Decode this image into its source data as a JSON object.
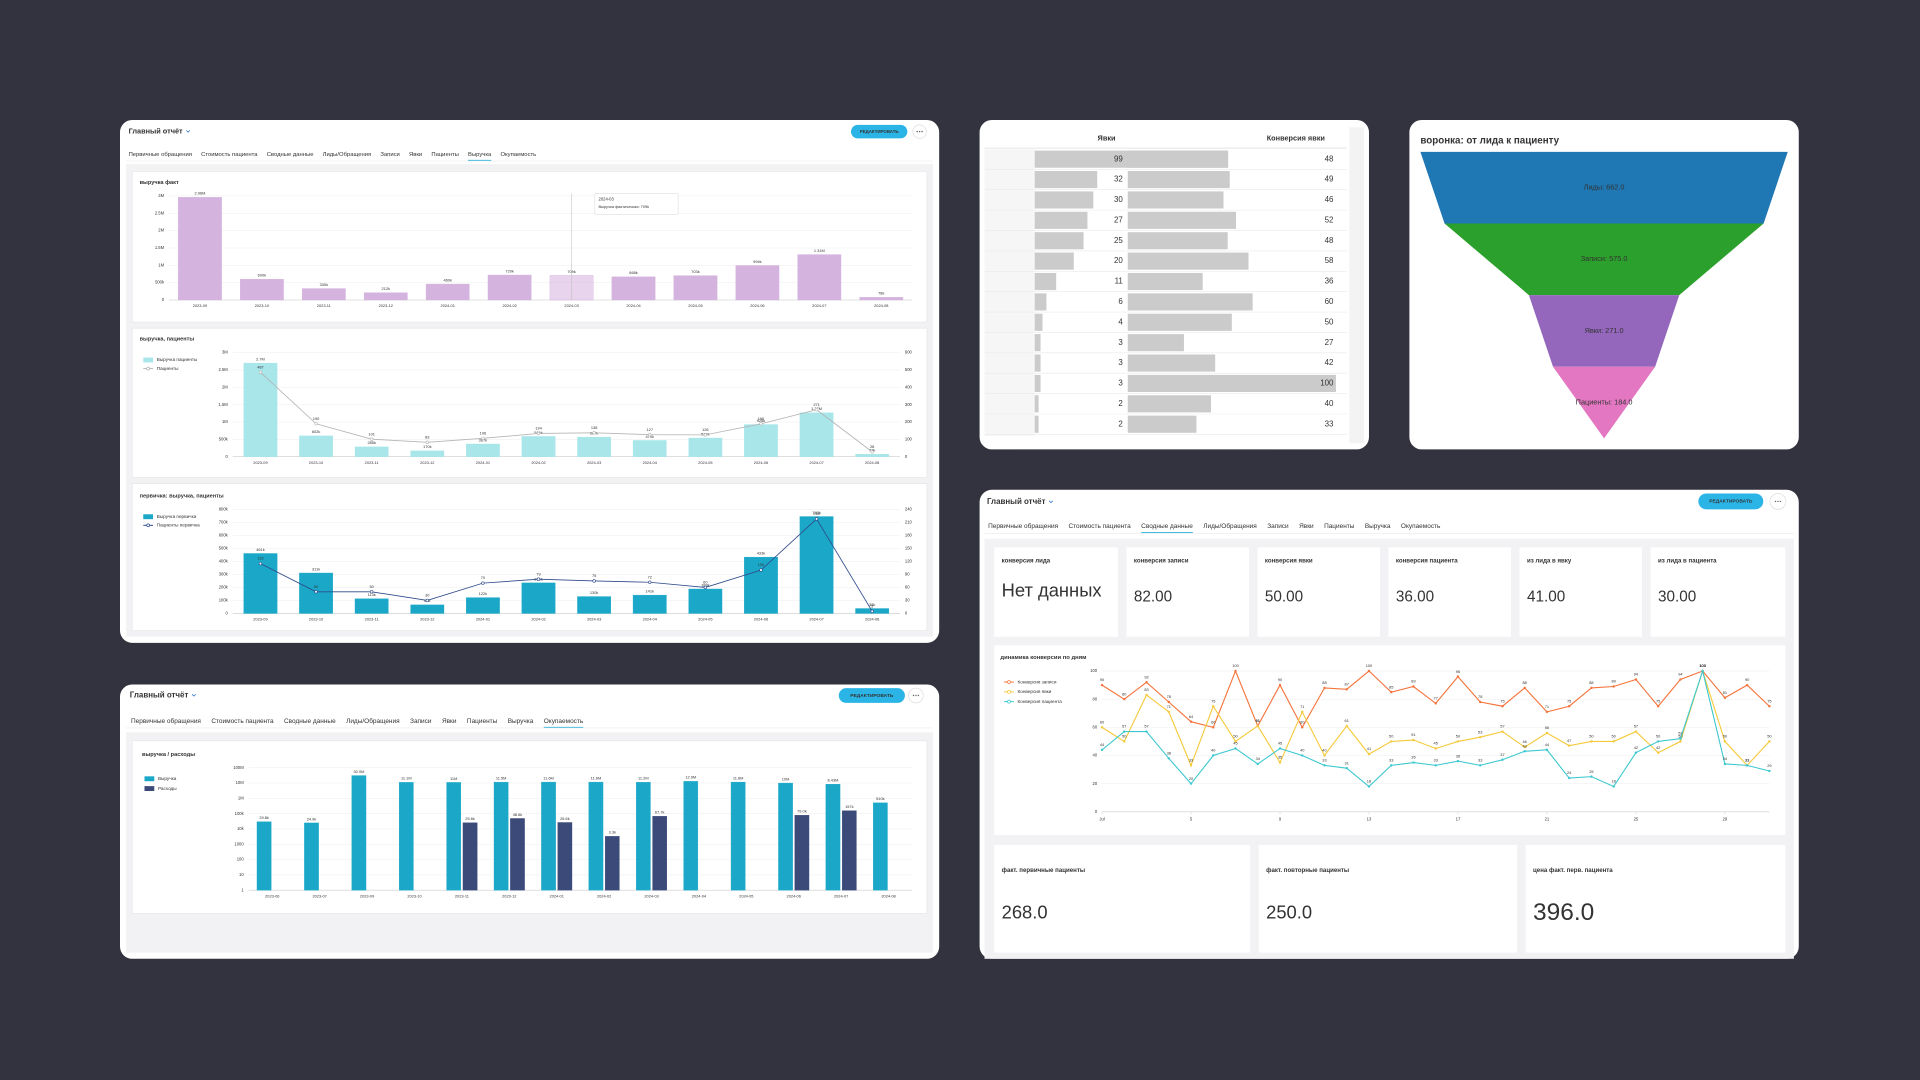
{
  "report": {
    "title": "Главный отчёт",
    "edit_button": "РЕДАКТИРОВАТЬ",
    "tabs": [
      "Первичные обращения",
      "Стоимость пациента",
      "Сводные данные",
      "Лиды/Обращения",
      "Записи",
      "Явки",
      "Пациенты",
      "Выручка",
      "Окупаемость"
    ]
  },
  "views": [
    {
      "active_tab": 7
    },
    {
      "active_tab": 8
    },
    {
      "active_tab": 2
    }
  ],
  "chart_data": [
    {
      "type": "bar",
      "title": "выручка факт",
      "categories": [
        "2023-09",
        "2023-10",
        "2023-11",
        "2023-12",
        "2024-01",
        "2024-02",
        "2024-03",
        "2024-04",
        "2024-05",
        "2024-06",
        "2024-07",
        "2024-08"
      ],
      "values": [
        2960000,
        600000,
        330000,
        212000,
        460000,
        720000,
        709000,
        668000,
        703000,
        994000,
        1310000,
        78000
      ],
      "value_labels": [
        "2.96M",
        "600k",
        "330k",
        "212k",
        "460k",
        "720k",
        "709k",
        "668k",
        "703k",
        "994k",
        "1.31M",
        "78k"
      ],
      "color": "#d5b3df",
      "ylim": [
        0,
        3000000
      ],
      "yticks": [
        0,
        {
          "value": 500000,
          "label": "500k"
        },
        {
          "value": 1000000,
          "label": "1M"
        },
        {
          "value": 1500000,
          "label": "1.5M"
        },
        {
          "value": 2000000,
          "label": "2M"
        },
        {
          "value": 2500000,
          "label": "2.5M"
        },
        {
          "value": 3000000,
          "label": "3M"
        }
      ],
      "grid": true,
      "tooltip": {
        "title": "2024-03",
        "text": "Выручка фактическая: 709k"
      }
    },
    {
      "type": "bar_line",
      "title": "выручка, пациенты",
      "legend": "left",
      "categories": [
        "2023-09",
        "2023-10",
        "2023-11",
        "2023-12",
        "2024-01",
        "2024-02",
        "2024-03",
        "2024-04",
        "2024-05",
        "2024-06",
        "2024-07",
        "2024-08"
      ],
      "series": [
        {
          "name": "Выручка пациенты",
          "type": "bar",
          "color": "#a8e6ea",
          "values": [
            2700000,
            602000,
            285000,
            170000,
            367000,
            586000,
            567000,
            470000,
            539000,
            928000,
            1270000,
            73000
          ],
          "value_labels": [
            "2.7M",
            "602k",
            "285k",
            "170k",
            "367k",
            "586k",
            "567k",
            "470k",
            "539k",
            "928k",
            "1.27M",
            "73k"
          ]
        },
        {
          "name": "Пациенты",
          "type": "line",
          "axis": "y2",
          "color": "#b5b5b5",
          "values": [
            487,
            190,
            101,
            83,
            106,
            134,
            138,
            127,
            126,
            190,
            271,
            28
          ]
        }
      ],
      "ylim": [
        0,
        3000000
      ],
      "yticks": [
        0,
        {
          "value": 500000,
          "label": "500k"
        },
        {
          "value": 1000000,
          "label": "1M"
        },
        {
          "value": 1500000,
          "label": "1.5M"
        },
        {
          "value": 2000000,
          "label": "2M"
        },
        {
          "value": 2500000,
          "label": "2.5M"
        },
        {
          "value": 3000000,
          "label": "3M"
        }
      ],
      "y2lim": [
        0,
        600
      ],
      "y2ticks": [
        0,
        100,
        200,
        300,
        400,
        500,
        600
      ],
      "grid": true
    },
    {
      "type": "bar_line",
      "title": "первичка: выручка, пациенты",
      "legend": "left",
      "categories": [
        "2023-09",
        "2023-10",
        "2023-11",
        "2023-12",
        "2024-01",
        "2024-02",
        "2024-03",
        "2024-04",
        "2024-05",
        "2024-06",
        "2024-07",
        "2024-08"
      ],
      "series": [
        {
          "name": "Выручка первичка",
          "type": "bar",
          "color": "#1ba8c8",
          "values": [
            461000,
            311000,
            113000,
            66000,
            122000,
            235000,
            130000,
            141000,
            188000,
            433000,
            745000,
            38000
          ],
          "value_labels": [
            "461k",
            "311k",
            "113k",
            "66k",
            "122k",
            "235k",
            "130k",
            "141k",
            "188k",
            "433k",
            "745k",
            "38k"
          ]
        },
        {
          "name": "Пациенты первичка",
          "type": "line",
          "axis": "y2",
          "color": "#2f4b8c",
          "values": [
            115,
            50,
            50,
            30,
            70,
            79,
            75,
            72,
            60,
            100,
            218,
            5
          ]
        }
      ],
      "ylim": [
        0,
        800000
      ],
      "yticks": [
        0,
        {
          "value": 100000,
          "label": "100k"
        },
        {
          "value": 200000,
          "label": "200k"
        },
        {
          "value": 300000,
          "label": "300k"
        },
        {
          "value": 400000,
          "label": "400k"
        },
        {
          "value": 500000,
          "label": "500k"
        },
        {
          "value": 600000,
          "label": "600k"
        },
        {
          "value": 700000,
          "label": "700k"
        },
        {
          "value": 800000,
          "label": "800k"
        }
      ],
      "y2lim": [
        0,
        240
      ],
      "y2ticks": [
        0,
        30,
        60,
        90,
        120,
        150,
        180,
        210,
        240
      ],
      "grid": true
    },
    {
      "type": "bar",
      "title": "выручка / расходы",
      "legend": "left",
      "log_scale": true,
      "categories": [
        "2023-06",
        "2023-07",
        "2023-09",
        "2023-10",
        "2023-11",
        "2023-12",
        "2024-01",
        "2024-02",
        "2024-03",
        "2024-04",
        "2024-05",
        "2024-06",
        "2024-07",
        "2024-08"
      ],
      "series": [
        {
          "name": "Выручка",
          "color": "#1ba8c8",
          "values": [
            29800,
            24900,
            30900000,
            11100000,
            11000000,
            11500000,
            11600000,
            11600000,
            11200000,
            12900000,
            11600000,
            10000000,
            8430000,
            510000
          ],
          "value_labels": [
            "29.8k",
            "24.9k",
            "30.9M",
            "11.1M",
            "11M",
            "11.5M",
            "11.6M",
            "11.6M",
            "11.2M",
            "12.9M",
            "11.6M",
            "10M",
            "8.43M",
            "510k"
          ]
        },
        {
          "name": "Расходы",
          "color": "#3c4a7a",
          "values": [
            null,
            null,
            null,
            null,
            25600,
            48600,
            26600,
            3300,
            67700,
            null,
            null,
            79000,
            157000,
            null
          ],
          "value_labels": [
            null,
            null,
            null,
            null,
            "25.6k",
            "48.6k",
            "26.6k",
            "3.3k",
            "67.7k",
            null,
            null,
            "79.0k",
            "157k",
            null
          ]
        }
      ],
      "ylim": [
        1,
        100000000
      ],
      "yticks": [
        1,
        10,
        100,
        1000,
        {
          "value": 10000,
          "label": "10k"
        },
        {
          "value": 100000,
          "label": "100k"
        },
        {
          "value": 1000000,
          "label": "1M"
        },
        {
          "value": 10000000,
          "label": "10M"
        },
        {
          "value": 100000000,
          "label": "100M"
        }
      ],
      "grid": true
    },
    {
      "type": "line",
      "title": "динамика конверсии по дням",
      "legend": "left",
      "x": [
        1,
        2,
        3,
        4,
        5,
        6,
        7,
        8,
        9,
        10,
        11,
        12,
        13,
        14,
        15,
        16,
        17,
        18,
        19,
        20,
        21,
        22,
        23,
        24,
        25,
        26,
        27,
        28,
        29,
        30,
        31
      ],
      "xlim": [
        1,
        31
      ],
      "xticks": [
        {
          "value": 1,
          "label": "Jul"
        },
        5,
        9,
        13,
        17,
        21,
        25,
        29
      ],
      "ylim": [
        0,
        100
      ],
      "yticks": [
        0,
        20,
        40,
        60,
        80,
        100
      ],
      "grid": true,
      "series": [
        {
          "name": "Конверсия записи",
          "color": "#f5733a",
          "values": [
            90,
            80,
            92,
            78,
            64,
            60,
            100,
            61,
            90,
            60,
            88,
            87,
            100,
            85,
            89,
            77,
            96,
            78,
            75,
            88,
            71,
            75,
            88,
            89,
            94,
            75,
            94,
            100,
            81,
            90,
            75
          ]
        },
        {
          "name": "Конверсия явки",
          "color": "#f5c938",
          "values": [
            60,
            50,
            83,
            71,
            33,
            75,
            50,
            61,
            35,
            71,
            40,
            61,
            41,
            50,
            51,
            45,
            50,
            53,
            57,
            46,
            56,
            47,
            50,
            50,
            57,
            42,
            50,
            100,
            50,
            33,
            50
          ]
        },
        {
          "name": "Конверсия пациента",
          "color": "#3cc8d0",
          "values": [
            44,
            57,
            57,
            38,
            20,
            40,
            45,
            34,
            45,
            40,
            33,
            31,
            18,
            33,
            35,
            33,
            36,
            33,
            37,
            43,
            44,
            24,
            25,
            18,
            42,
            50,
            52,
            100,
            34,
            33,
            29
          ]
        }
      ]
    },
    {
      "type": "funnel",
      "title": "воронка: от лида к пациенту",
      "categories": [
        "Лиды",
        "Записи",
        "Явки",
        "Пациенты"
      ],
      "values": [
        662,
        575,
        271,
        184
      ],
      "value_labels": [
        "Лиды: 662.0",
        "Записи: 575.0",
        "Явки: 271.0",
        "Пациенты: 184.0"
      ],
      "colors": [
        "#1f77b4",
        "#2ca02c",
        "#9467bd",
        "#e377c2"
      ]
    }
  ],
  "attendance_table": {
    "columns": [
      "Явки",
      "Конверсия явки"
    ],
    "rows": [
      [
        99,
        48
      ],
      [
        32,
        49
      ],
      [
        30,
        46
      ],
      [
        27,
        52
      ],
      [
        25,
        48
      ],
      [
        20,
        58
      ],
      [
        11,
        36
      ],
      [
        6,
        60
      ],
      [
        4,
        50
      ],
      [
        3,
        27
      ],
      [
        3,
        42
      ],
      [
        3,
        100
      ],
      [
        2,
        40
      ],
      [
        2,
        33
      ]
    ]
  },
  "summary": {
    "kpis": [
      {
        "title": "конверсия лида",
        "value": "Нет данных"
      },
      {
        "title": "конверсия записи",
        "value": "82.00"
      },
      {
        "title": "конверсия явки",
        "value": "50.00"
      },
      {
        "title": "конверсия пациента",
        "value": "36.00"
      },
      {
        "title": "из лида в явку",
        "value": "41.00"
      },
      {
        "title": "из лида в пациента",
        "value": "30.00"
      }
    ],
    "facts": [
      {
        "title": "факт. первичные пациенты",
        "value": "268.0"
      },
      {
        "title": "факт. повторные пациенты",
        "value": "250.0"
      },
      {
        "title": "цена факт. перв. пациента",
        "value": "396.0"
      }
    ]
  }
}
